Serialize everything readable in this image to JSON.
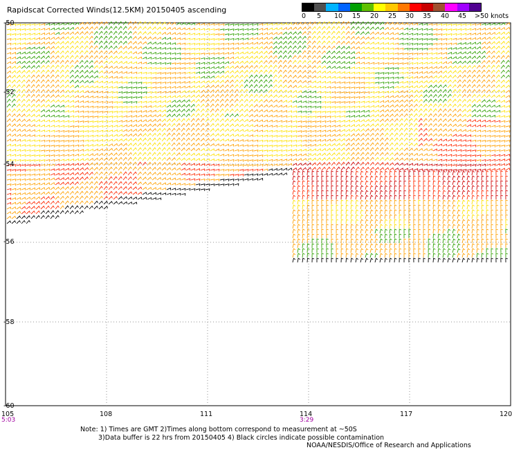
{
  "title": "Rapidscat Corrected Winds(12.5KM) 20150405 ascending",
  "legend": {
    "colors": [
      "#000000",
      "#505050",
      "#00b4ff",
      "#0064ff",
      "#00a000",
      "#60c000",
      "#ffff00",
      "#ffc800",
      "#ff7800",
      "#ff0000",
      "#c80000",
      "#a05030",
      "#ff00ff",
      "#a000ff",
      "#500090"
    ],
    "labels": [
      "0",
      "5",
      "10",
      "15",
      "20",
      "25",
      "30",
      "35",
      "40",
      "45",
      ">50 knots"
    ]
  },
  "map": {
    "lat_labels": [
      "-50",
      "-52",
      "-54",
      "-56",
      "-58",
      "-60"
    ],
    "lon_labels": [
      "105",
      "108",
      "111",
      "114",
      "117",
      "120"
    ],
    "time_labels": [
      "5:03",
      "3:29"
    ]
  },
  "wind_colors": {
    "calm": "#000000",
    "green": "#30a000",
    "yellow": "#ffe000",
    "orange": "#ffa000",
    "red": "#ff2800",
    "darkred": "#d00000"
  },
  "notes": {
    "line1": "Note: 1) Times are GMT 2)Times along bottom correspond to measurement at ~50S",
    "line2": "3)Data buffer is 22 hrs from 20150405 4) Black circles indicate possible contamination",
    "line3": "NOAA/NESDIS/Office of Research and Applications"
  }
}
